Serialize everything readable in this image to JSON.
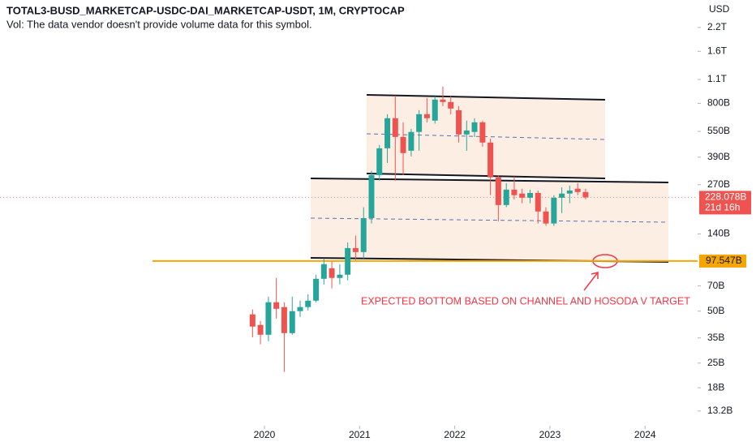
{
  "chart_data": {
    "type": "candlestick",
    "title": "TOTAL3-BUSD_MARKETCAP-USDC-DAI_MARKETCAP-USDT, 1M, CRYPTOCAP",
    "subtitle": "Vol: The data vendor doesn't provide volume data for this symbol.",
    "currency": "USD",
    "y_scale": "log",
    "grid": false,
    "up_color": "#26a69a",
    "down_color": "#ef5350",
    "x": [
      2019.875,
      2019.958,
      2020.042,
      2020.125,
      2020.208,
      2020.292,
      2020.375,
      2020.458,
      2020.542,
      2020.625,
      2020.708,
      2020.792,
      2020.875,
      2020.958,
      2021.042,
      2021.125,
      2021.208,
      2021.292,
      2021.375,
      2021.458,
      2021.542,
      2021.625,
      2021.708,
      2021.792,
      2021.875,
      2021.958,
      2022.042,
      2022.125,
      2022.208,
      2022.292,
      2022.375,
      2022.458,
      2022.542,
      2022.625,
      2022.708,
      2022.792,
      2022.875,
      2022.958,
      2023.042,
      2023.125,
      2023.208,
      2023.292,
      2023.375
    ],
    "open": [
      47.9,
      41.6,
      36.5,
      56.3,
      52.8,
      37.3,
      50.0,
      52.8,
      57.5,
      77.0,
      88.6,
      77.9,
      81.3,
      116,
      110,
      173,
      307,
      439,
      656,
      511,
      425,
      546,
      692,
      635,
      841,
      814,
      730,
      528,
      546,
      621,
      474,
      298,
      206,
      253,
      240,
      227,
      242,
      189,
      161,
      227,
      240,
      256,
      245
    ],
    "high": [
      51.1,
      43.9,
      60.7,
      77.9,
      56.3,
      60.7,
      57.5,
      62.7,
      81.3,
      101,
      96.7,
      93.6,
      125,
      137,
      200,
      325,
      459,
      692,
      887,
      621,
      569,
      730,
      859,
      878,
      1000,
      878,
      771,
      635,
      656,
      635,
      500,
      307,
      276,
      301,
      256,
      253,
      250,
      200,
      235,
      261,
      267,
      276,
      256
    ],
    "low": [
      35.3,
      32.1,
      33.5,
      45.3,
      22.2,
      36.5,
      46.3,
      50.5,
      56.3,
      71.4,
      67.7,
      71.4,
      75.4,
      98.8,
      101,
      161,
      285,
      361,
      285,
      307,
      394,
      425,
      621,
      610,
      771,
      692,
      474,
      425,
      511,
      449,
      235,
      166,
      200,
      222,
      211,
      211,
      161,
      156,
      156,
      185,
      211,
      235,
      222
    ],
    "close": [
      40.7,
      36.5,
      56.3,
      51.6,
      37.3,
      50.0,
      52.8,
      57.5,
      77.0,
      93.6,
      77.9,
      81.3,
      116,
      110,
      173,
      307,
      439,
      656,
      511,
      412,
      546,
      692,
      656,
      841,
      814,
      746,
      528,
      557,
      621,
      474,
      298,
      206,
      253,
      235,
      227,
      242,
      189,
      161,
      227,
      240,
      250,
      245,
      228.078
    ],
    "xlim": [
      2017.221,
      2024.552
    ],
    "xticks": [
      2020,
      2021,
      2022,
      2023,
      2024
    ],
    "ylim": [
      11.2,
      3175
    ],
    "yticks": [
      {
        "value": 2200,
        "label": "2.2T"
      },
      {
        "value": 1600,
        "label": "1.6T"
      },
      {
        "value": 1100,
        "label": "1.1T"
      },
      {
        "value": 800,
        "label": "800B"
      },
      {
        "value": 550,
        "label": "550B"
      },
      {
        "value": 390,
        "label": "390B"
      },
      {
        "value": 270,
        "label": "270B"
      },
      {
        "value": 140,
        "label": "140B"
      },
      {
        "value": 70,
        "label": "70B"
      },
      {
        "value": 50,
        "label": "50B"
      },
      {
        "value": 35,
        "label": "35B"
      },
      {
        "value": 25,
        "label": "25B"
      },
      {
        "value": 18,
        "label": "18B"
      },
      {
        "value": 13.2,
        "label": "13.2B"
      }
    ],
    "last_price": {
      "value": 228.078,
      "label": "228.078B",
      "countdown": "21d 16h",
      "color": "#ef5350"
    },
    "horizontal_line": {
      "value": 97.547,
      "label": "97.547B",
      "color": "#f7a600"
    },
    "annotation": {
      "text": "EXPECTED BOTTOM BASED ON CHANNEL AND HOSODA V TARGET",
      "color": "#f23645"
    }
  }
}
